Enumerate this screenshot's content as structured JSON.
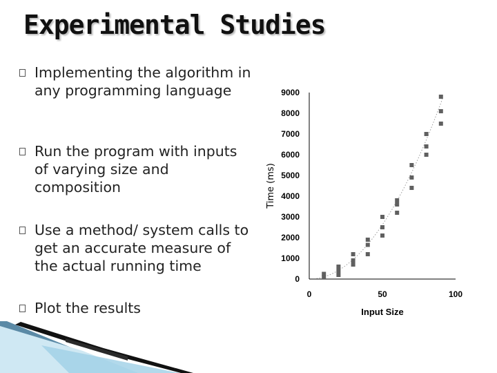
{
  "slide": {
    "title": "Experimental Studies",
    "bullets": [
      "Implementing the algorithm in any programming language",
      "Run the program with inputs of varying size and composition",
      "Use a method/ system calls to get an accurate measure of the actual running time",
      "Plot the results"
    ]
  },
  "chart_data": {
    "type": "scatter",
    "title": "",
    "xlabel": "Input Size",
    "ylabel": "Time (ms)",
    "xlim": [
      0,
      100
    ],
    "ylim": [
      0,
      9000
    ],
    "x_ticks": [
      "0",
      "50",
      "100"
    ],
    "y_ticks": [
      "0",
      "1000",
      "2000",
      "3000",
      "4000",
      "5000",
      "6000",
      "7000",
      "8000",
      "9000"
    ],
    "x_tick_values": [
      0,
      50,
      100
    ],
    "y_tick_values": [
      0,
      1000,
      2000,
      3000,
      4000,
      5000,
      6000,
      7000,
      8000,
      9000
    ],
    "trend": "dotted",
    "marker_color": "#606060",
    "points": [
      {
        "x": 10,
        "y": 100
      },
      {
        "x": 10,
        "y": 250
      },
      {
        "x": 20,
        "y": 200
      },
      {
        "x": 20,
        "y": 400
      },
      {
        "x": 20,
        "y": 600
      },
      {
        "x": 30,
        "y": 700
      },
      {
        "x": 30,
        "y": 900
      },
      {
        "x": 30,
        "y": 1200
      },
      {
        "x": 40,
        "y": 1200
      },
      {
        "x": 40,
        "y": 1650
      },
      {
        "x": 40,
        "y": 1900
      },
      {
        "x": 50,
        "y": 2100
      },
      {
        "x": 50,
        "y": 2500
      },
      {
        "x": 50,
        "y": 3000
      },
      {
        "x": 60,
        "y": 3200
      },
      {
        "x": 60,
        "y": 3600
      },
      {
        "x": 60,
        "y": 3800
      },
      {
        "x": 70,
        "y": 4400
      },
      {
        "x": 70,
        "y": 4900
      },
      {
        "x": 70,
        "y": 5500
      },
      {
        "x": 80,
        "y": 6000
      },
      {
        "x": 80,
        "y": 6400
      },
      {
        "x": 80,
        "y": 7000
      },
      {
        "x": 90,
        "y": 7500
      },
      {
        "x": 90,
        "y": 8100
      },
      {
        "x": 90,
        "y": 8800
      }
    ]
  }
}
